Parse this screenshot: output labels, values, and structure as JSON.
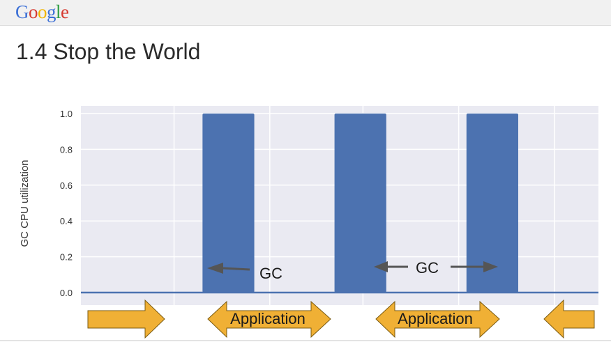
{
  "header": {
    "logo_letters": [
      {
        "ch": "G",
        "color": "#3b6fd6"
      },
      {
        "ch": "o",
        "color": "#d6392f"
      },
      {
        "ch": "o",
        "color": "#f0b400"
      },
      {
        "ch": "g",
        "color": "#3b6fd6"
      },
      {
        "ch": "l",
        "color": "#2f9e44"
      },
      {
        "ch": "e",
        "color": "#d6392f"
      }
    ]
  },
  "slide": {
    "title": "1.4 Stop the World"
  },
  "chart_data": {
    "type": "bar",
    "ylabel": "GC CPU utilization",
    "ylim": [
      0.0,
      1.0
    ],
    "yticks": [
      "0.0",
      "0.2",
      "0.4",
      "0.6",
      "0.8",
      "1.0"
    ],
    "bars": [
      {
        "start": 0.235,
        "end": 0.335,
        "value": 1.0
      },
      {
        "start": 0.49,
        "end": 0.59,
        "value": 1.0
      },
      {
        "start": 0.745,
        "end": 0.845,
        "value": 1.0
      }
    ],
    "baseline_value": 0.0,
    "bar_color": "#4c72b0",
    "grid": true,
    "annotations": {
      "gc_1": "GC",
      "gc_2": "GC",
      "application_1": "Application",
      "application_2": "Application"
    },
    "arrow_color": "#f0b035"
  }
}
